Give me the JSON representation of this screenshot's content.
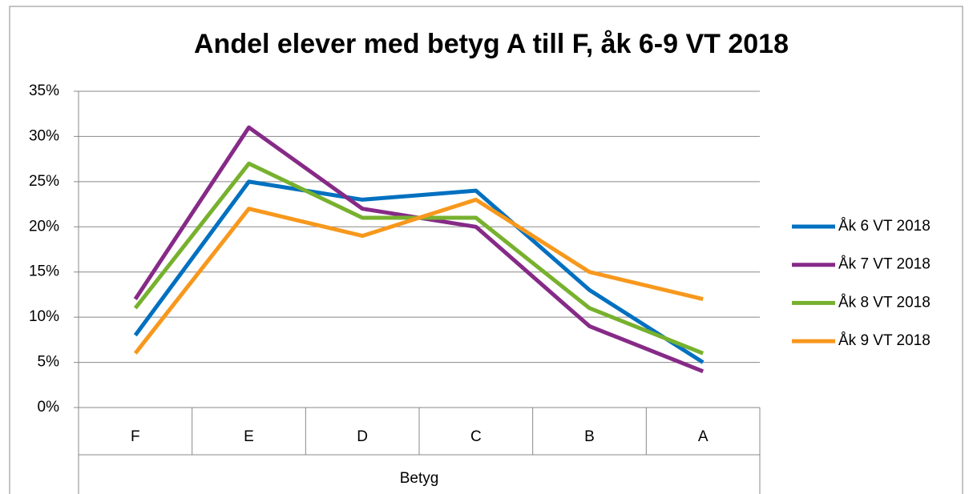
{
  "chart_data": {
    "type": "line",
    "title": "Andel elever med betyg A till F, åk 6-9 VT 2018",
    "x_label": "Betyg",
    "categories": [
      "F",
      "E",
      "D",
      "C",
      "B",
      "A"
    ],
    "series": [
      {
        "name": "Åk 6 VT 2018",
        "color": "#0070c0",
        "values": [
          8,
          25,
          23,
          24,
          13,
          5
        ]
      },
      {
        "name": "Åk 7 VT 2018",
        "color": "#862a87",
        "values": [
          12,
          31,
          22,
          20,
          9,
          4
        ]
      },
      {
        "name": "Åk 8 VT 2018",
        "color": "#77b12e",
        "values": [
          11,
          27,
          21,
          21,
          11,
          6
        ]
      },
      {
        "name": "Åk 9 VT 2018",
        "color": "#f7981d",
        "values": [
          6,
          22,
          19,
          23,
          15,
          12
        ]
      }
    ],
    "ylim": [
      0,
      35
    ],
    "yticks": [
      {
        "value": 0,
        "label": "0%"
      },
      {
        "value": 5,
        "label": "5%"
      },
      {
        "value": 10,
        "label": "10%"
      },
      {
        "value": 15,
        "label": "15%"
      },
      {
        "value": 20,
        "label": "20%"
      },
      {
        "value": 25,
        "label": "25%"
      },
      {
        "value": 30,
        "label": "30%"
      },
      {
        "value": 35,
        "label": "35%"
      }
    ],
    "grid": true,
    "legend": "right"
  }
}
